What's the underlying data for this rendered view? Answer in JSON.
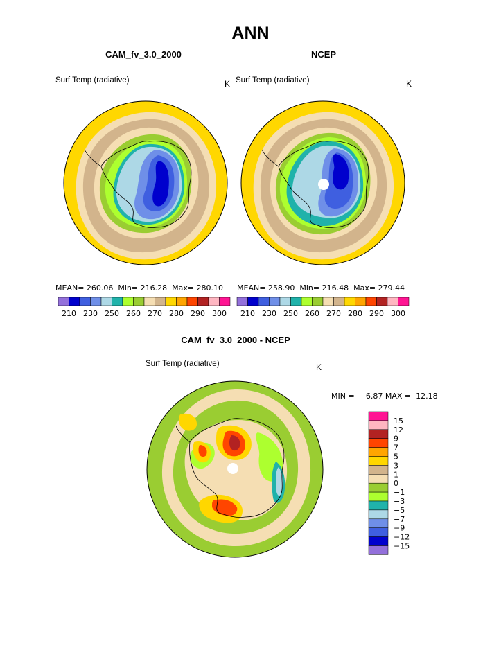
{
  "chart_data": {
    "type": "heatmap",
    "title": "ANN",
    "panels": [
      {
        "id": "model",
        "title": "CAM_fv_3.0_2000",
        "variable_label": "Surf Temp (radiative)",
        "units": "K",
        "stats": {
          "mean": "260.06",
          "min": "216.28",
          "max": "280.10"
        },
        "stats_text": "MEAN= 260.06  Min= 216.28  Max= 280.10",
        "contour_levels": [
          210,
          215,
          220,
          225,
          230,
          235,
          240,
          245,
          250,
          255,
          260,
          265,
          270,
          275,
          280,
          285,
          290,
          295,
          300,
          305
        ],
        "colorbar_tick_labels": [
          "210",
          "230",
          "250",
          "260",
          "270",
          "280",
          "290",
          "300"
        ]
      },
      {
        "id": "obs",
        "title": "NCEP",
        "variable_label": "Surf Temp (radiative)",
        "units": "K",
        "stats": {
          "mean": "258.90",
          "min": "216.48",
          "max": "279.44"
        },
        "stats_text": "MEAN= 258.90  Min= 216.48  Max= 279.44",
        "contour_levels": [
          210,
          215,
          220,
          225,
          230,
          235,
          240,
          245,
          250,
          255,
          260,
          265,
          270,
          275,
          280,
          285,
          290,
          295,
          300,
          305
        ],
        "colorbar_tick_labels": [
          "210",
          "230",
          "250",
          "260",
          "270",
          "280",
          "290",
          "300"
        ]
      },
      {
        "id": "diff",
        "title": "CAM_fv_3.0_2000 - NCEP",
        "variable_label": "Surf Temp (radiative)",
        "units": "K",
        "stats": {
          "min": "-6.87",
          "max": "12.18"
        },
        "minmax_text": "MIN =  −6.87 MAX =  12.18",
        "contour_levels": [
          -15,
          -12,
          -9,
          -7,
          -5,
          -3,
          -1,
          0,
          1,
          3,
          5,
          7,
          9,
          12,
          15
        ],
        "colorbar_tick_labels": [
          "15",
          "12",
          "9",
          "7",
          "5",
          "3",
          "1",
          "0",
          "−1",
          "−3",
          "−5",
          "−7",
          "−9",
          "−12",
          "−15"
        ]
      }
    ]
  },
  "colors": {
    "abs_scale": [
      "#9370db",
      "#0000cd",
      "#3f5fe0",
      "#6f8fe8",
      "#add8e6",
      "#20b2aa",
      "#adff2f",
      "#9acd32",
      "#f5deb3",
      "#d2b48c",
      "#ffd700",
      "#ffa500",
      "#ff4500",
      "#b22222",
      "#ffb6c1",
      "#ff1493"
    ],
    "diff_scale": [
      "#ff1493",
      "#ffb6c1",
      "#b22222",
      "#ff4500",
      "#ffa500",
      "#ffd700",
      "#d2b48c",
      "#f5deb3",
      "#9acd32",
      "#adff2f",
      "#20b2aa",
      "#add8e6",
      "#6f8fe8",
      "#3f5fe0",
      "#0000cd",
      "#9370db"
    ]
  }
}
